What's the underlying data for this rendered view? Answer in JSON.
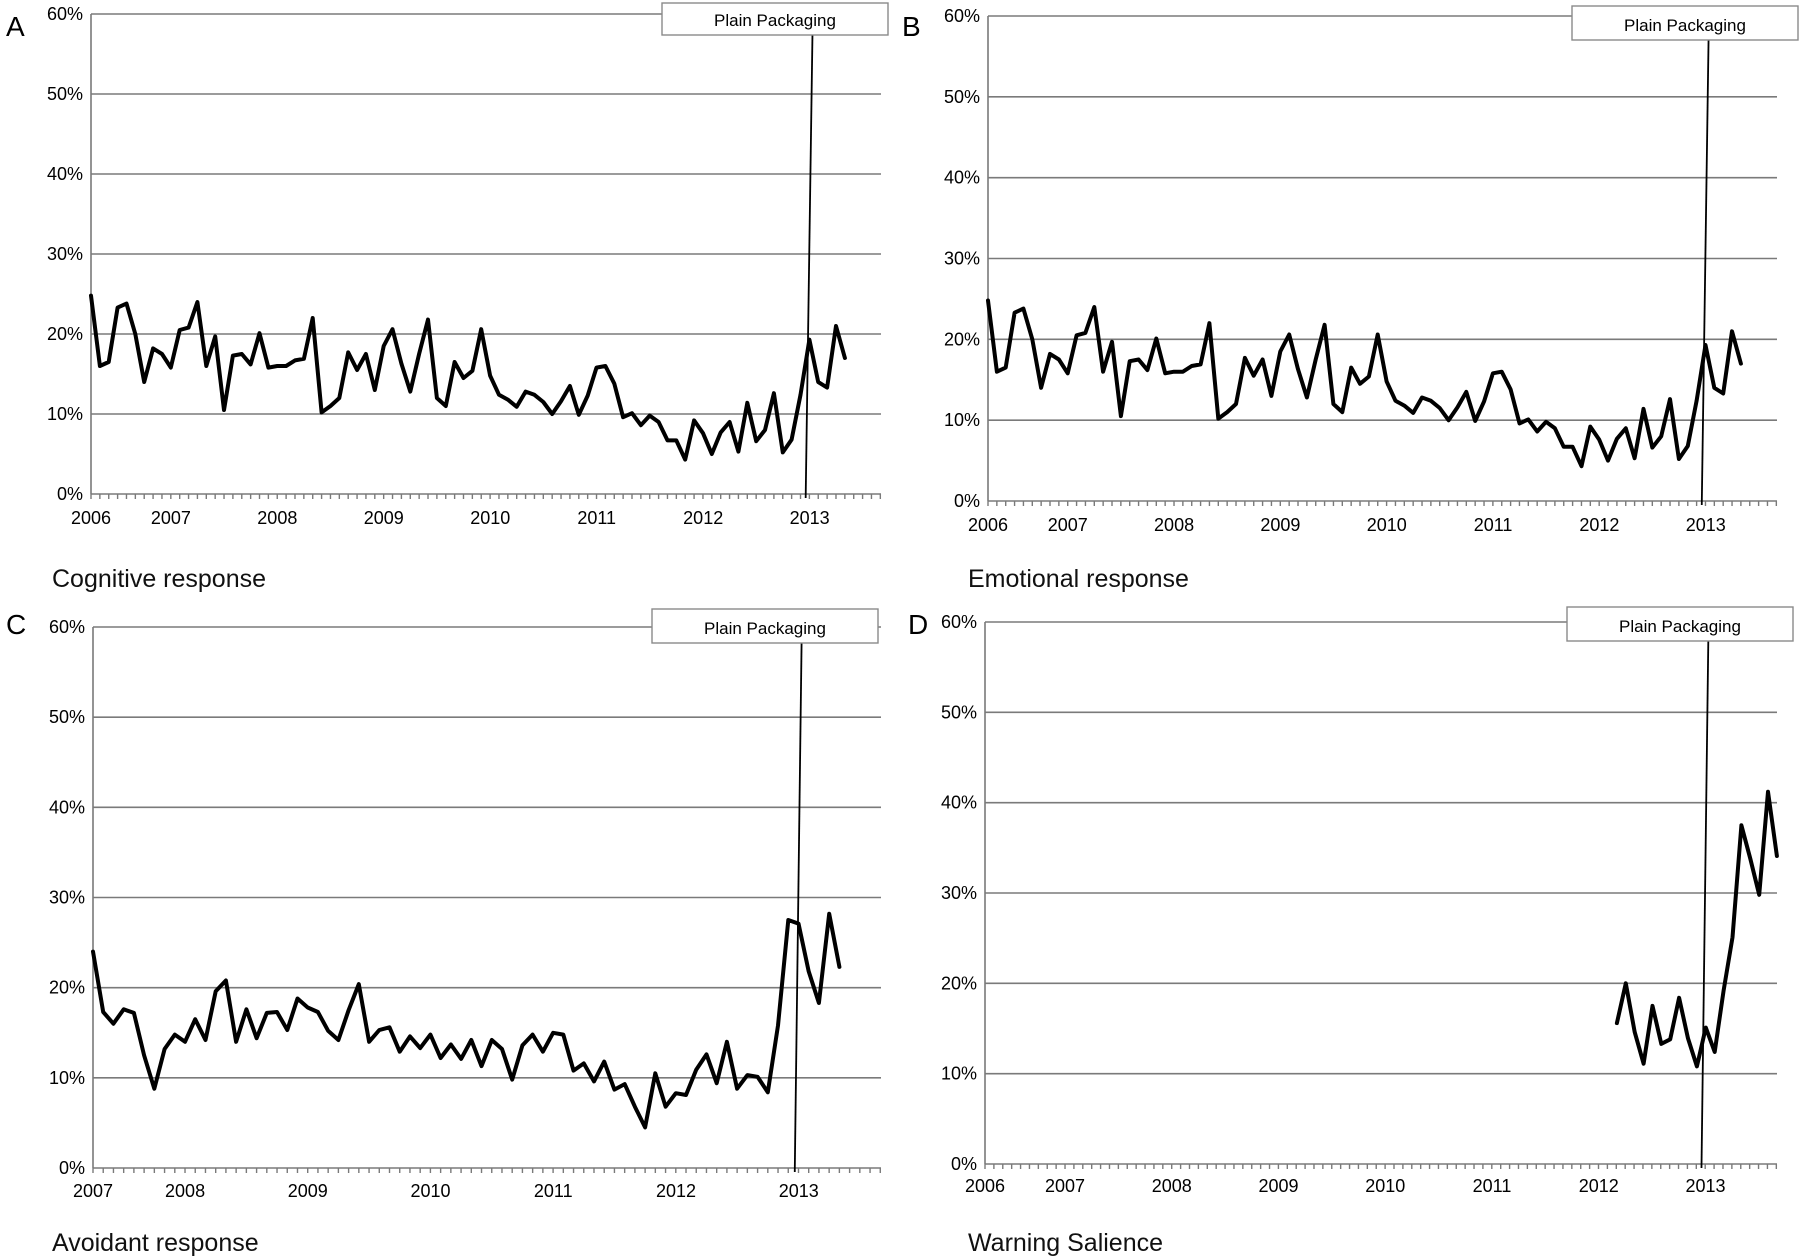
{
  "chart_data": [
    {
      "panel": "A",
      "type": "line",
      "caption": "Cognitive response",
      "ylim": [
        0,
        60
      ],
      "yticks": [
        "0%",
        "10%",
        "20%",
        "30%",
        "40%",
        "50%",
        "60%"
      ],
      "xlim": [
        2006.0,
        2013.42
      ],
      "xticks": [
        {
          "label": "2006",
          "value": 2006.0
        },
        {
          "label": "2007",
          "value": 2006.75
        },
        {
          "label": "2008",
          "value": 2007.75
        },
        {
          "label": "2009",
          "value": 2008.75
        },
        {
          "label": "2010",
          "value": 2009.75
        },
        {
          "label": "2011",
          "value": 2010.75
        },
        {
          "label": "2012",
          "value": 2011.75
        },
        {
          "label": "2013",
          "value": 2012.75
        }
      ],
      "grid": true,
      "annotation": {
        "label": "Plain Packaging",
        "x": 2012.75
      },
      "x_start": 2006.0,
      "x_step": 0.0833,
      "values": [
        24.8,
        16,
        16.5,
        23.3,
        23.8,
        20,
        14,
        18.2,
        17.5,
        15.8,
        20.5,
        20.8,
        24,
        16,
        19.7,
        10.5,
        17.3,
        17.5,
        16.2,
        20.1,
        15.8,
        16,
        16,
        16.7,
        16.9,
        22,
        10.2,
        11,
        12,
        17.7,
        15.5,
        17.5,
        13,
        18.5,
        20.6,
        16.3,
        12.8,
        17.5,
        21.8,
        12,
        11,
        16.5,
        14.5,
        15.4,
        20.6,
        14.8,
        12.4,
        11.8,
        10.9,
        12.8,
        12.4,
        11.5,
        10,
        11.6,
        13.5,
        9.9,
        12.3,
        15.8,
        16,
        13.8,
        9.6,
        10.1,
        8.6,
        9.8,
        9,
        6.7,
        6.7,
        4.3,
        9.2,
        7.6,
        5,
        7.7,
        9,
        5.3,
        11.4,
        6.6,
        8,
        12.6,
        5.2,
        6.8,
        12.4,
        19.3,
        14,
        13.3,
        21,
        17
      ]
    },
    {
      "panel": "B",
      "type": "line",
      "caption": "Emotional response",
      "ylim": [
        0,
        60
      ],
      "yticks": [
        "0%",
        "10%",
        "20%",
        "30%",
        "40%",
        "50%",
        "60%"
      ],
      "xlim": [
        2006.0,
        2013.42
      ],
      "xticks": [
        {
          "label": "2006",
          "value": 2006.0
        },
        {
          "label": "2007",
          "value": 2006.75
        },
        {
          "label": "2008",
          "value": 2007.75
        },
        {
          "label": "2009",
          "value": 2008.75
        },
        {
          "label": "2010",
          "value": 2009.75
        },
        {
          "label": "2011",
          "value": 2010.75
        },
        {
          "label": "2012",
          "value": 2011.75
        },
        {
          "label": "2013",
          "value": 2012.75
        }
      ],
      "grid": true,
      "annotation": {
        "label": "Plain Packaging",
        "x": 2012.75
      },
      "x_start": 2006.0,
      "x_step": 0.0833,
      "values": [
        24.8,
        16,
        16.5,
        23.3,
        23.8,
        20,
        14,
        18.2,
        17.5,
        15.8,
        20.5,
        20.8,
        24,
        16,
        19.7,
        10.5,
        17.3,
        17.5,
        16.2,
        20.1,
        15.8,
        16,
        16,
        16.7,
        16.9,
        22,
        10.2,
        11,
        12,
        17.7,
        15.5,
        17.5,
        13,
        18.5,
        20.6,
        16.3,
        12.8,
        17.5,
        21.8,
        12,
        11,
        16.5,
        14.5,
        15.4,
        20.6,
        14.8,
        12.4,
        11.8,
        10.9,
        12.8,
        12.4,
        11.5,
        10,
        11.6,
        13.5,
        9.9,
        12.3,
        15.8,
        16,
        13.8,
        9.6,
        10.1,
        8.6,
        9.8,
        9,
        6.7,
        6.7,
        4.3,
        9.2,
        7.6,
        5,
        7.7,
        9,
        5.3,
        11.4,
        6.6,
        8,
        12.6,
        5.2,
        6.8,
        12.4,
        19.3,
        14,
        13.3,
        21,
        17
      ]
    },
    {
      "panel": "C",
      "type": "line",
      "caption": "Avoidant response",
      "ylim": [
        0,
        60
      ],
      "yticks": [
        "0%",
        "10%",
        "20%",
        "30%",
        "40%",
        "50%",
        "60%"
      ],
      "xlim": [
        2007.0,
        2013.42
      ],
      "xticks": [
        {
          "label": "2007",
          "value": 2007.0
        },
        {
          "label": "2008",
          "value": 2007.75
        },
        {
          "label": "2009",
          "value": 2008.75
        },
        {
          "label": "2010",
          "value": 2009.75
        },
        {
          "label": "2011",
          "value": 2010.75
        },
        {
          "label": "2012",
          "value": 2011.75
        },
        {
          "label": "2013",
          "value": 2012.75
        }
      ],
      "grid": true,
      "annotation": {
        "label": "Plain Packaging",
        "x": 2012.75
      },
      "x_start": 2007.0,
      "x_step": 0.0833,
      "values": [
        24,
        17.3,
        16,
        17.6,
        17.2,
        12.5,
        8.8,
        13.2,
        14.8,
        14,
        16.5,
        14.2,
        19.6,
        20.8,
        14,
        17.6,
        14.4,
        17.2,
        17.3,
        15.3,
        18.8,
        17.8,
        17.3,
        15.2,
        14.2,
        17.5,
        20.4,
        14,
        15.3,
        15.6,
        12.9,
        14.6,
        13.3,
        14.8,
        12.2,
        13.7,
        12.1,
        14.2,
        11.3,
        14.2,
        13.2,
        9.8,
        13.6,
        14.8,
        12.9,
        15,
        14.8,
        10.8,
        11.6,
        9.6,
        11.8,
        8.7,
        9.3,
        6.8,
        4.5,
        10.5,
        6.8,
        8.3,
        8.1,
        10.9,
        12.6,
        9.4,
        14,
        8.8,
        10.3,
        10.1,
        8.4,
        15.8,
        27.5,
        27.1,
        21.8,
        18.3,
        28.2,
        22.3
      ]
    },
    {
      "panel": "D",
      "type": "line",
      "caption": "Warning Salience",
      "ylim": [
        0,
        60
      ],
      "yticks": [
        "0%",
        "10%",
        "20%",
        "30%",
        "40%",
        "50%",
        "60%"
      ],
      "xlim": [
        2006.0,
        2013.42
      ],
      "xticks": [
        {
          "label": "2006",
          "value": 2006.0
        },
        {
          "label": "2007",
          "value": 2006.75
        },
        {
          "label": "2008",
          "value": 2007.75
        },
        {
          "label": "2009",
          "value": 2008.75
        },
        {
          "label": "2010",
          "value": 2009.75
        },
        {
          "label": "2011",
          "value": 2010.75
        },
        {
          "label": "2012",
          "value": 2011.75
        },
        {
          "label": "2013",
          "value": 2012.75
        }
      ],
      "grid": true,
      "annotation": {
        "label": "Plain Packaging",
        "x": 2012.75
      },
      "x_start": 2011.92,
      "x_step": 0.0833,
      "values": [
        15.6,
        20,
        14.6,
        11.1,
        17.5,
        13.3,
        13.8,
        18.4,
        13.9,
        10.8,
        15.1,
        12.4,
        19.2,
        25.1,
        37.5,
        33.8,
        29.8,
        41.2,
        34.1
      ]
    }
  ]
}
